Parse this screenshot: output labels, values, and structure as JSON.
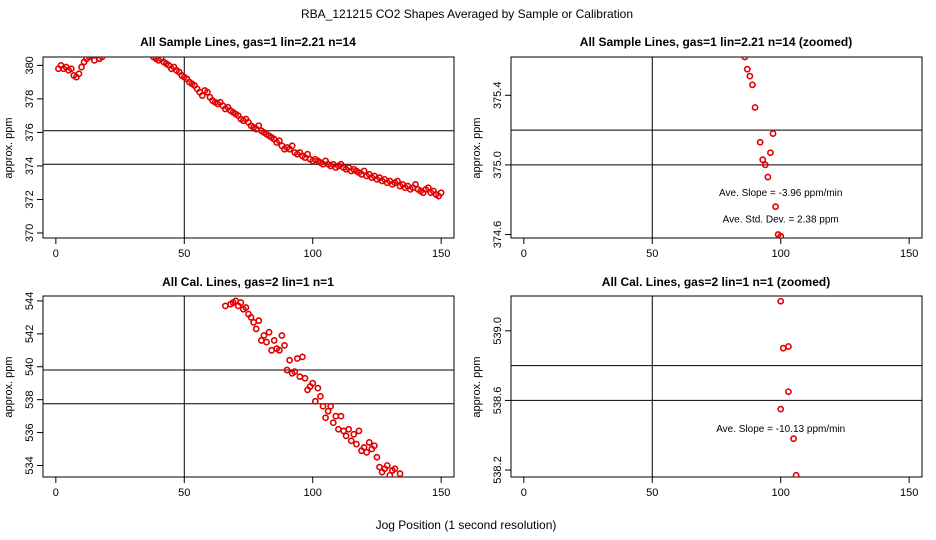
{
  "figure": {
    "title": "RBA_121215  CO2 Shapes Averaged by Sample or Calibration",
    "xlabel": "Jog Position (1 second resolution)"
  },
  "colors": {
    "points": "#e00000",
    "axes": "#000000",
    "background": "#ffffff"
  },
  "chart_data": [
    {
      "type": "scatter",
      "title": "All Sample Lines, gas=1 lin=2.21 n=14",
      "xlabel": "",
      "ylabel": "approx. ppm",
      "xlim": [
        -5,
        155
      ],
      "ylim": [
        369.7,
        380.5
      ],
      "xticks": [
        0,
        50,
        100,
        150
      ],
      "yticks": [
        370,
        372,
        374,
        376,
        378,
        380
      ],
      "vlines": [
        50
      ],
      "hlines": [
        374.1,
        376.1
      ],
      "annotations": [],
      "x": [
        1,
        2,
        3,
        4,
        5,
        6,
        7,
        8,
        9,
        10,
        11,
        12,
        13,
        14,
        15,
        16,
        17,
        18,
        38,
        39,
        40,
        41,
        42,
        43,
        44,
        45,
        46,
        47,
        48,
        49,
        50,
        51,
        52,
        53,
        54,
        55,
        56,
        57,
        58,
        59,
        60,
        61,
        62,
        63,
        64,
        65,
        66,
        67,
        68,
        69,
        70,
        71,
        72,
        73,
        74,
        75,
        76,
        77,
        78,
        79,
        80,
        81,
        82,
        83,
        84,
        85,
        86,
        87,
        88,
        89,
        90,
        91,
        92,
        93,
        94,
        95,
        96,
        97,
        98,
        99,
        100,
        101,
        102,
        103,
        104,
        105,
        106,
        107,
        108,
        109,
        110,
        111,
        112,
        113,
        114,
        115,
        116,
        117,
        118,
        119,
        120,
        121,
        122,
        123,
        124,
        125,
        126,
        127,
        128,
        129,
        130,
        131,
        132,
        133,
        134,
        135,
        136,
        137,
        138,
        139,
        140,
        141,
        142,
        143,
        144,
        145,
        146,
        147,
        148,
        149,
        150
      ],
      "y": [
        379.8,
        380.0,
        379.8,
        379.9,
        379.7,
        379.8,
        379.4,
        379.3,
        379.5,
        379.9,
        380.2,
        380.4,
        380.5,
        380.6,
        380.3,
        380.6,
        380.4,
        380.5,
        380.5,
        380.4,
        380.3,
        380.4,
        380.2,
        380.1,
        380.0,
        379.8,
        379.9,
        379.7,
        379.6,
        379.4,
        379.3,
        379.2,
        379.0,
        378.9,
        378.8,
        378.6,
        378.4,
        378.2,
        378.5,
        378.4,
        378.1,
        377.9,
        377.8,
        377.7,
        377.8,
        377.6,
        377.4,
        377.5,
        377.3,
        377.2,
        377.1,
        377.0,
        376.8,
        376.7,
        376.8,
        376.6,
        376.4,
        376.3,
        376.2,
        376.4,
        376.1,
        376.0,
        375.9,
        375.8,
        375.7,
        375.6,
        375.4,
        375.5,
        375.2,
        375.0,
        375.1,
        375.0,
        375.2,
        374.8,
        374.7,
        374.8,
        374.6,
        374.5,
        374.7,
        374.4,
        374.3,
        374.4,
        374.3,
        374.2,
        374.1,
        374.3,
        374.1,
        374.0,
        374.1,
        373.9,
        374.0,
        374.1,
        373.9,
        373.8,
        373.9,
        373.7,
        373.8,
        373.7,
        373.6,
        373.5,
        373.7,
        373.4,
        373.5,
        373.3,
        373.4,
        373.2,
        373.3,
        373.1,
        373.2,
        373.0,
        373.1,
        372.9,
        373.0,
        373.1,
        372.8,
        372.9,
        372.7,
        372.8,
        372.6,
        372.7,
        372.9,
        372.6,
        372.5,
        372.4,
        372.6,
        372.7,
        372.4,
        372.5,
        372.3,
        372.2,
        372.4
      ]
    },
    {
      "type": "scatter",
      "title": "All Sample Lines, gas=1 lin=2.21 n=14 (zoomed)",
      "xlabel": "",
      "ylabel": "approx. ppm",
      "xlim": [
        -5,
        155
      ],
      "ylim": [
        374.58,
        375.62
      ],
      "xticks": [
        0,
        50,
        100,
        150
      ],
      "yticks": [
        374.6,
        375.0,
        375.4
      ],
      "vlines": [
        50
      ],
      "hlines": [
        375.0,
        375.2
      ],
      "annotations": [
        {
          "text": "Ave. Slope =  -3.96  ppm/min",
          "at_data": [
            100,
            374.82
          ]
        },
        {
          "text": "Ave. Std. Dev. =  2.38  ppm",
          "at_data": [
            100,
            374.67
          ]
        }
      ],
      "x": [
        86,
        87,
        88,
        89,
        90,
        92,
        93,
        94,
        95,
        96,
        97,
        98,
        99,
        100
      ],
      "y": [
        375.62,
        375.55,
        375.51,
        375.46,
        375.33,
        375.13,
        375.03,
        375.0,
        374.93,
        375.07,
        375.18,
        374.76,
        374.6,
        374.59
      ]
    },
    {
      "type": "scatter",
      "title": "All Cal. Lines, gas=2 lin=1 n=1",
      "xlabel": "",
      "ylabel": "approx. ppm",
      "xlim": [
        -5,
        155
      ],
      "ylim": [
        533.3,
        544.3
      ],
      "xticks": [
        0,
        50,
        100,
        150
      ],
      "yticks": [
        534,
        536,
        538,
        540,
        542,
        544
      ],
      "vlines": [
        50
      ],
      "hlines": [
        537.75,
        539.8
      ],
      "annotations": [],
      "x": [
        66,
        68,
        69,
        70,
        71,
        72,
        73,
        74,
        75,
        76,
        77,
        78,
        79,
        80,
        81,
        82,
        83,
        84,
        85,
        86,
        87,
        88,
        89,
        90,
        91,
        92,
        93,
        94,
        95,
        96,
        97,
        98,
        99,
        100,
        101,
        102,
        103,
        104,
        105,
        106,
        107,
        108,
        109,
        110,
        111,
        112,
        113,
        114,
        115,
        116,
        117,
        118,
        119,
        120,
        121,
        122,
        123,
        124,
        125,
        126,
        127,
        128,
        129,
        130,
        131,
        132,
        134
      ],
      "y": [
        543.7,
        543.8,
        543.9,
        544.0,
        543.7,
        543.9,
        543.5,
        543.6,
        543.2,
        543.0,
        542.7,
        542.3,
        542.8,
        541.6,
        541.9,
        541.5,
        542.1,
        541.0,
        541.6,
        541.1,
        541.0,
        541.9,
        541.3,
        539.8,
        540.4,
        539.6,
        539.7,
        540.5,
        539.4,
        540.6,
        539.3,
        538.6,
        538.8,
        539.0,
        537.9,
        538.7,
        538.2,
        537.6,
        536.9,
        537.3,
        537.6,
        536.6,
        537.0,
        536.2,
        537.0,
        536.1,
        535.8,
        536.2,
        535.5,
        535.9,
        535.3,
        536.1,
        534.9,
        535.1,
        534.8,
        535.4,
        535.0,
        535.2,
        534.5,
        533.9,
        533.6,
        533.8,
        534.0,
        533.4,
        533.7,
        533.8,
        533.5
      ]
    },
    {
      "type": "scatter",
      "title": "All Cal. Lines, gas=2 lin=1 n=1 (zoomed)",
      "xlabel": "",
      "ylabel": "approx. ppm",
      "xlim": [
        -5,
        155
      ],
      "ylim": [
        538.16,
        539.2
      ],
      "xticks": [
        0,
        50,
        100,
        150
      ],
      "yticks": [
        538.2,
        538.6,
        539.0
      ],
      "vlines": [
        50
      ],
      "hlines": [
        538.6,
        538.8
      ],
      "annotations": [
        {
          "text": "Ave. Slope =  -10.13  ppm/min",
          "at_data": [
            100,
            538.42
          ]
        }
      ],
      "x": [
        100,
        101,
        103,
        103,
        100,
        105,
        106
      ],
      "y": [
        539.17,
        538.9,
        538.91,
        538.65,
        538.55,
        538.38,
        538.17
      ]
    }
  ]
}
